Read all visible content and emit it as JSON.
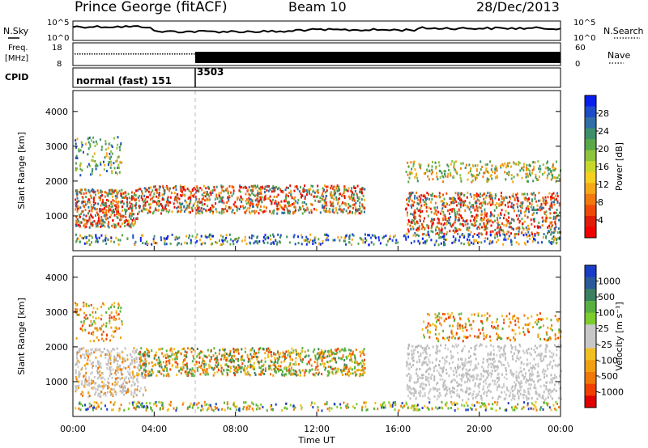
{
  "header": {
    "station": "Prince George (fitACF)",
    "beam": "Beam 10",
    "date": "28/Dec/2013"
  },
  "strip_labels": {
    "nsky": "N.Sky",
    "nsky_ticks": [
      "10^5",
      "10^0"
    ],
    "nsearch": "N.Search",
    "nsearch_ticks": [
      "10^5",
      "10^0"
    ],
    "freq": "Freq.",
    "freq_unit": "[MHz]",
    "freq_ticks": [
      "18",
      "8"
    ],
    "nave": "Nave",
    "nave_ticks": [
      "60",
      "0"
    ],
    "cpid": "CPID",
    "cpid_modes": [
      "normal (fast) 151",
      "3503"
    ]
  },
  "chart_data": [
    {
      "type": "heatmap",
      "title": "Power",
      "ylabel": "Slant Range [km]",
      "colorbar_label": "Power [dB]",
      "colorbar_ticks": [
        "28",
        "24",
        "20",
        "16",
        "12",
        "8",
        "4"
      ],
      "colorbar_colors": [
        "#0a1ef0",
        "#1e4cc8",
        "#2f6ea6",
        "#3d8f6a",
        "#5aa84a",
        "#8cc43c",
        "#c8d82a",
        "#f5d020",
        "#f5a818",
        "#f07a10",
        "#f04a0a",
        "#e01c0a",
        "#f00000"
      ],
      "ylim": [
        0,
        4600
      ],
      "yticks": [
        1000,
        2000,
        3000,
        4000
      ]
    },
    {
      "type": "heatmap",
      "title": "Velocity",
      "ylabel": "Slant Range [km]",
      "colorbar_label": "Velocity [m s⁻¹]",
      "colorbar_ticks": [
        "1000",
        "500",
        "100",
        "25",
        "-25",
        "-100",
        "-500",
        "-1000"
      ],
      "colorbar_colors": [
        "#1a3cc8",
        "#2a5a9a",
        "#3a8060",
        "#58b040",
        "#7ccc2c",
        "#c8c8c8",
        "#c8c8c8",
        "#f0c020",
        "#f0a010",
        "#f07808",
        "#f04000",
        "#e00000"
      ],
      "ylim": [
        0,
        4600
      ],
      "yticks": [
        1000,
        2000,
        3000,
        4000
      ]
    }
  ],
  "xaxis": {
    "label": "Time UT",
    "ticks": [
      "00:00",
      "04:00",
      "08:00",
      "12:00",
      "16:00",
      "20:00",
      "00:00"
    ]
  }
}
